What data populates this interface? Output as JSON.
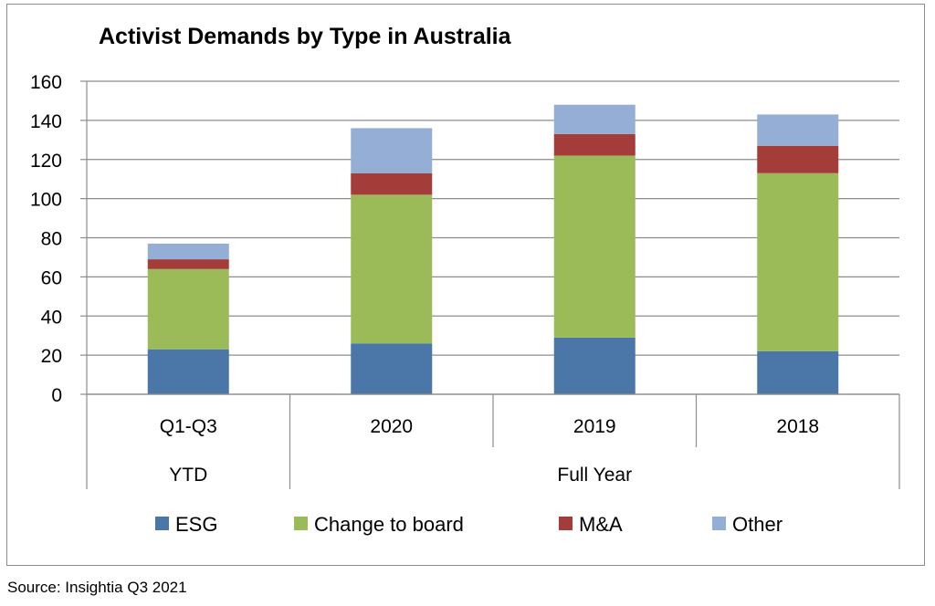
{
  "chart_data": {
    "type": "bar",
    "stacked": true,
    "title": "Activist Demands by Type in Australia",
    "categories": [
      "Q1-Q3",
      "2020",
      "2019",
      "2018"
    ],
    "groups": [
      {
        "label": "YTD",
        "categories": [
          "Q1-Q3"
        ]
      },
      {
        "label": "Full Year",
        "categories": [
          "2020",
          "2019",
          "2018"
        ]
      }
    ],
    "series": [
      {
        "name": "ESG",
        "color": "#4a76a8",
        "values": [
          23,
          26,
          29,
          22
        ]
      },
      {
        "name": "Change to board",
        "color": "#9bbb59",
        "values": [
          41,
          76,
          93,
          91
        ]
      },
      {
        "name": "M&A",
        "color": "#a43d3a",
        "values": [
          5,
          11,
          11,
          14
        ]
      },
      {
        "name": "Other",
        "color": "#95aed6",
        "values": [
          8,
          23,
          15,
          16
        ]
      }
    ],
    "ylim": [
      0,
      160
    ],
    "yticks": [
      "0",
      "20",
      "40",
      "60",
      "80",
      "100",
      "120",
      "140",
      "160"
    ],
    "grid": true,
    "legend_position": "bottom"
  },
  "source": "Source: Insightia Q3 2021"
}
